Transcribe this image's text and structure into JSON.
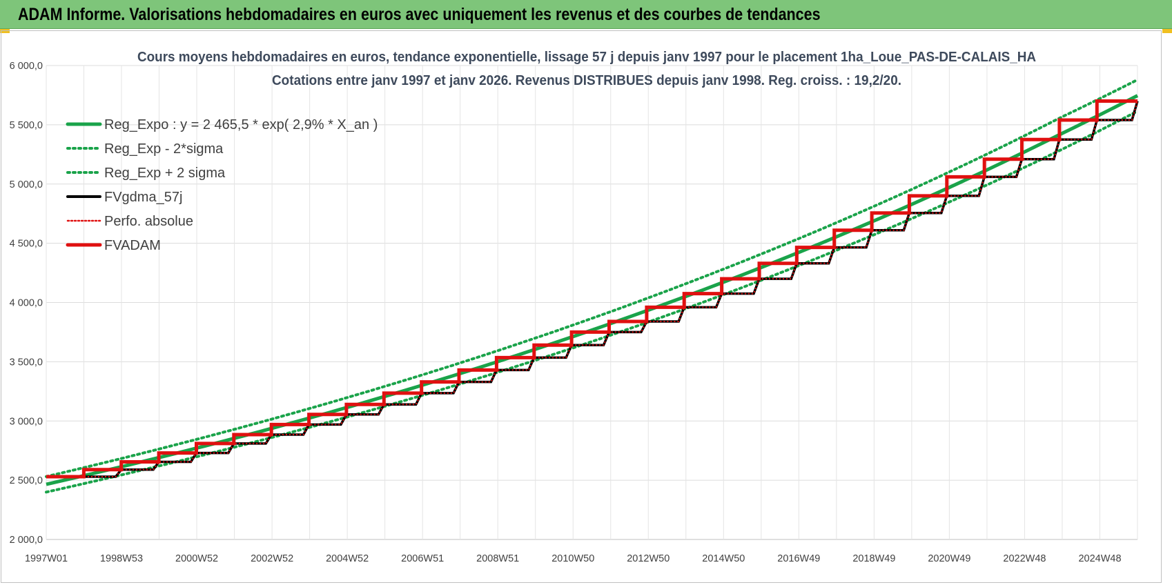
{
  "header": {
    "title": "ADAM Informe. Valorisations hebdomadaires en euros avec uniquement les revenus et des courbes de tendances"
  },
  "chart_data": {
    "type": "line",
    "title": "Cours moyens hebdomadaires en euros, tendance exponentielle, lissage 57 j depuis janv 1997  pour le  placement 1ha_Loue_PAS-DE-CALAIS_HA",
    "subtitle": "Cotations entre janv 1997 et janv 2026. Revenus DISTRIBUES depuis janv 1998.  Reg. croiss. : 19,2/20.",
    "xlabel": "",
    "ylabel": "",
    "ylim": [
      2000,
      6000
    ],
    "xlim": [
      1997.0,
      2026.08
    ],
    "y_ticks": [
      "2 000,0",
      "2 500,0",
      "3 000,0",
      "3 500,0",
      "4 000,0",
      "4 500,0",
      "5 000,0",
      "5 500,0",
      "6 000,0"
    ],
    "x_tick_labels": [
      "1997W01",
      "1998W53",
      "2000W52",
      "2002W52",
      "2004W52",
      "2006W51",
      "2008W51",
      "2010W50",
      "2012W50",
      "2014W50",
      "2016W49",
      "2018W49",
      "2020W49",
      "2022W48",
      "2024W48"
    ],
    "grid": true,
    "legend_position": "top-left",
    "series": [
      {
        "name": "Reg_Expo : y = 2 465,5 * exp( 2,9% *  X_an )",
        "color": "#1aa34a",
        "style": "solid",
        "x": [
          1997,
          2000,
          2003,
          2006,
          2009,
          2012,
          2015,
          2018,
          2021,
          2024,
          2026.08
        ],
        "values": [
          2465.5,
          2691,
          2937,
          3205,
          3498,
          3818,
          4166,
          4547,
          4962,
          5416,
          5746
        ]
      },
      {
        "name": "Reg_Exp - 2*sigma",
        "color": "#1aa34a",
        "style": "dotted",
        "x": [
          1997,
          2000,
          2003,
          2006,
          2009,
          2012,
          2015,
          2018,
          2021,
          2024,
          2026.08
        ],
        "values": [
          2400,
          2620,
          2860,
          3122,
          3408,
          3720,
          4061,
          4433,
          4839,
          5282,
          5615
        ]
      },
      {
        "name": "Reg_Exp + 2 sigma",
        "color": "#1aa34a",
        "style": "dotted",
        "x": [
          1997,
          2000,
          2003,
          2006,
          2009,
          2012,
          2015,
          2018,
          2021,
          2024,
          2026.08
        ],
        "values": [
          2531,
          2763,
          3015,
          3290,
          3590,
          3918,
          4276,
          4666,
          5092,
          5556,
          5880
        ]
      },
      {
        "name": "FVgdma_57j",
        "color": "#000000",
        "style": "solid",
        "x": [
          1997.0,
          1998.0,
          1999.0,
          2000.0,
          2001.0,
          2002.0,
          2003.0,
          2004.0,
          2005.0,
          2006.0,
          2007.0,
          2008.0,
          2009.0,
          2010.0,
          2011.0,
          2012.0,
          2013.0,
          2014.0,
          2015.0,
          2016.0,
          2017.0,
          2018.0,
          2019.0,
          2020.0,
          2021.0,
          2022.0,
          2023.0,
          2024.0,
          2025.0,
          2026.08
        ],
        "values": [
          2530,
          2530,
          2590,
          2655,
          2730,
          2810,
          2885,
          2970,
          3055,
          3140,
          3235,
          3330,
          3430,
          3535,
          3640,
          3750,
          3840,
          3960,
          4075,
          4200,
          4330,
          4465,
          4610,
          4755,
          4900,
          5060,
          5210,
          5375,
          5540,
          5700
        ]
      },
      {
        "name": "Perfo. absolue",
        "color": "#e01010",
        "style": "dotted",
        "x": [
          1997.0,
          1998.0,
          1999.0,
          2000.0,
          2001.0,
          2002.0,
          2003.0,
          2004.0,
          2005.0,
          2006.0,
          2007.0,
          2008.0,
          2009.0,
          2010.0,
          2011.0,
          2012.0,
          2013.0,
          2014.0,
          2015.0,
          2016.0,
          2017.0,
          2018.0,
          2019.0,
          2020.0,
          2021.0,
          2022.0,
          2023.0,
          2024.0,
          2025.0,
          2026.08
        ],
        "values": [
          2530,
          2530,
          2590,
          2655,
          2730,
          2810,
          2885,
          2970,
          3055,
          3140,
          3235,
          3330,
          3430,
          3535,
          3640,
          3750,
          3840,
          3960,
          4075,
          4200,
          4330,
          4465,
          4610,
          4755,
          4900,
          5060,
          5210,
          5375,
          5540,
          5700
        ]
      },
      {
        "name": "FVADAM",
        "color": "#e01010",
        "style": "step",
        "x": [
          1997.0,
          1998.0,
          1999.0,
          2000.0,
          2001.0,
          2002.0,
          2003.0,
          2004.0,
          2005.0,
          2006.0,
          2007.0,
          2008.0,
          2009.0,
          2010.0,
          2011.0,
          2012.0,
          2013.0,
          2014.0,
          2015.0,
          2016.0,
          2017.0,
          2018.0,
          2019.0,
          2020.0,
          2021.0,
          2022.0,
          2023.0,
          2024.0,
          2025.0
        ],
        "values": [
          2530,
          2590,
          2655,
          2730,
          2810,
          2885,
          2970,
          3055,
          3140,
          3235,
          3330,
          3430,
          3535,
          3640,
          3750,
          3840,
          3960,
          4075,
          4200,
          4330,
          4465,
          4610,
          4755,
          4900,
          5060,
          5210,
          5375,
          5540,
          5700
        ]
      }
    ]
  }
}
